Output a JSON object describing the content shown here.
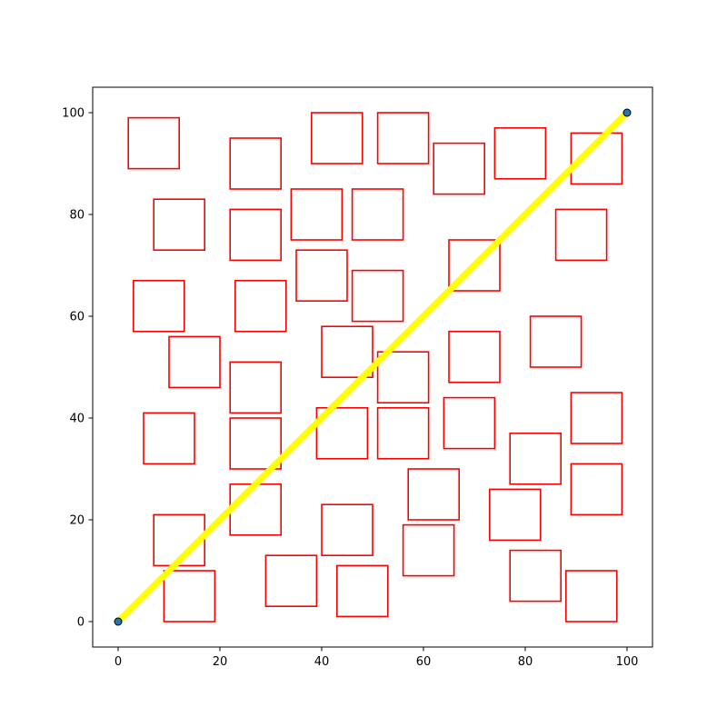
{
  "chart_data": {
    "type": "scatter",
    "title": "",
    "xlabel": "",
    "ylabel": "",
    "xlim": [
      -5,
      105
    ],
    "ylim": [
      -5,
      105
    ],
    "xticks": [
      0,
      20,
      40,
      60,
      80,
      100
    ],
    "yticks": [
      0,
      20,
      40,
      60,
      80,
      100
    ],
    "grid": false,
    "legend": "none",
    "line": {
      "color": "#ffff00",
      "points": [
        [
          0,
          0
        ],
        [
          100,
          100
        ]
      ]
    },
    "endpoints": {
      "fill": "#1f77b4",
      "edge": "#000000",
      "points": [
        [
          0,
          0
        ],
        [
          100,
          100
        ]
      ]
    },
    "squares": {
      "edge_color": "#ff0000",
      "size": 10,
      "corners": [
        [
          2,
          89
        ],
        [
          22,
          85
        ],
        [
          38,
          90
        ],
        [
          51,
          90
        ],
        [
          62,
          84
        ],
        [
          74,
          87
        ],
        [
          89,
          86
        ],
        [
          7,
          73
        ],
        [
          22,
          71
        ],
        [
          34,
          75
        ],
        [
          46,
          75
        ],
        [
          86,
          71
        ],
        [
          3,
          57
        ],
        [
          23,
          57
        ],
        [
          35,
          63
        ],
        [
          46,
          59
        ],
        [
          65,
          65
        ],
        [
          10,
          46
        ],
        [
          22,
          41
        ],
        [
          40,
          48
        ],
        [
          51,
          43
        ],
        [
          65,
          47
        ],
        [
          81,
          50
        ],
        [
          5,
          31
        ],
        [
          22,
          30
        ],
        [
          39,
          32
        ],
        [
          51,
          32
        ],
        [
          64,
          34
        ],
        [
          77,
          27
        ],
        [
          89,
          35
        ],
        [
          22,
          17
        ],
        [
          57,
          20
        ],
        [
          73,
          16
        ],
        [
          89,
          21
        ],
        [
          7,
          11
        ],
        [
          40,
          13
        ],
        [
          56,
          9
        ],
        [
          77,
          4
        ],
        [
          9,
          0
        ],
        [
          29,
          3
        ],
        [
          43,
          1
        ],
        [
          88,
          0
        ]
      ]
    }
  }
}
